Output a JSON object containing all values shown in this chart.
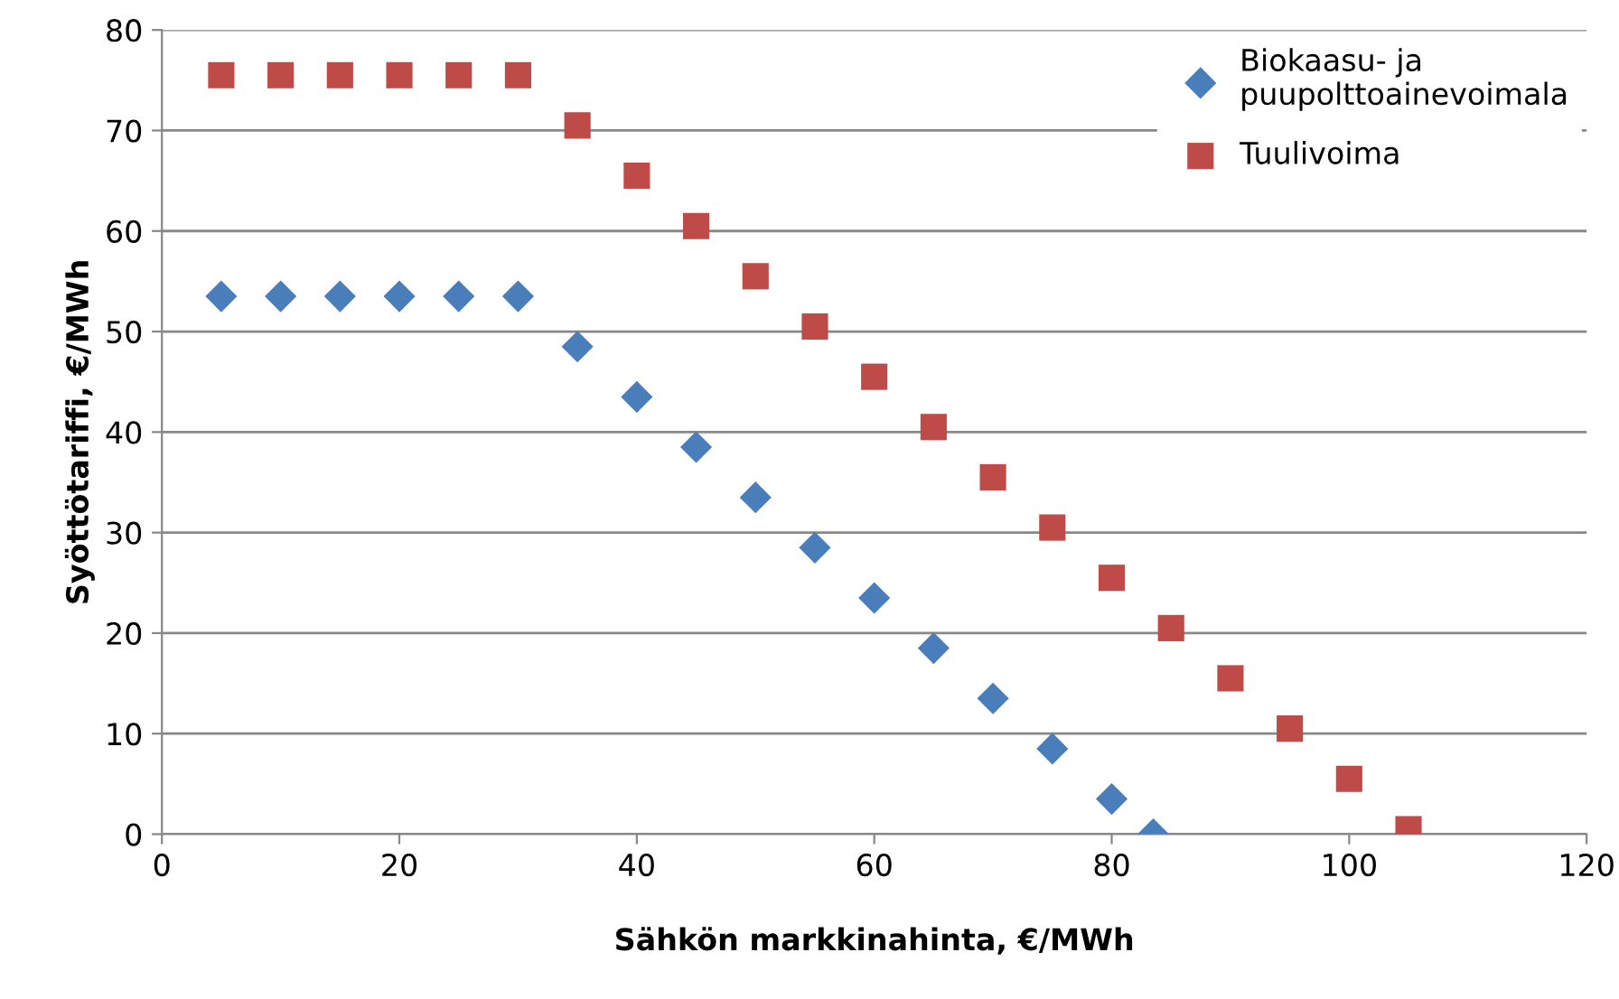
{
  "chart_data": {
    "type": "scatter",
    "xlabel": "Sähkön markkinahinta, €/MWh",
    "ylabel": "Syöttötariffi, €/MWh",
    "series": [
      {
        "name": "Biokaasu- ja\npuupolttoainevoimala",
        "color": "#4a7ebb",
        "marker": "diamond",
        "x": [
          5,
          10,
          15,
          20,
          25,
          30,
          35,
          40,
          45,
          50,
          55,
          60,
          65,
          70,
          75,
          80,
          83.5
        ],
        "values": [
          53.5,
          53.5,
          53.5,
          53.5,
          53.5,
          53.5,
          48.5,
          43.5,
          38.5,
          33.5,
          28.5,
          23.5,
          18.5,
          13.5,
          8.5,
          3.5,
          0
        ]
      },
      {
        "name": "Tuulivoima",
        "color": "#be4b48",
        "marker": "square",
        "x": [
          5,
          10,
          15,
          20,
          25,
          30,
          35,
          40,
          45,
          50,
          55,
          60,
          65,
          70,
          75,
          80,
          85,
          90,
          95,
          100,
          105
        ],
        "values": [
          75.5,
          75.5,
          75.5,
          75.5,
          75.5,
          75.5,
          70.5,
          65.5,
          60.5,
          55.5,
          50.5,
          45.5,
          40.5,
          35.5,
          30.5,
          25.5,
          20.5,
          15.5,
          10.5,
          5.5,
          0.5
        ]
      }
    ],
    "xlim": [
      0,
      120
    ],
    "xticks": [
      0,
      20,
      40,
      60,
      80,
      100,
      120
    ],
    "ylim": [
      0,
      80
    ],
    "yticks": [
      0,
      10,
      20,
      30,
      40,
      50,
      60,
      70,
      80
    ],
    "grid": "y",
    "legend": "top right"
  }
}
